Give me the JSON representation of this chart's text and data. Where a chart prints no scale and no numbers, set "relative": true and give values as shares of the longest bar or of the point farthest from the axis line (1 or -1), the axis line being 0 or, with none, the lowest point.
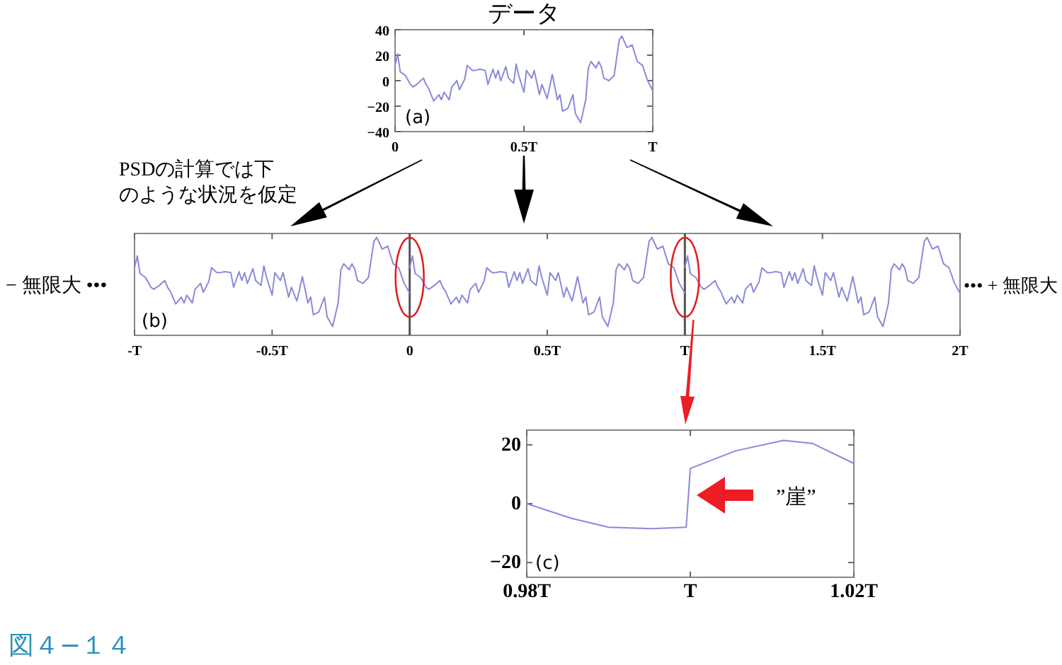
{
  "chart_data": [
    {
      "type": "line",
      "title": "データ",
      "xlim": [
        0,
        1
      ],
      "xticks": [
        0,
        {
          "value": 0.5,
          "label": "0.5T"
        },
        {
          "value": 1,
          "label": "T"
        }
      ],
      "ylim": [
        -40,
        40
      ],
      "yticks": [
        -40,
        -20,
        0,
        20,
        40
      ],
      "annotations": [
        "(a)"
      ],
      "series": [
        {
          "color": "#8a8ad8",
          "x": [
            0,
            0.01,
            0.02,
            0.04,
            0.06,
            0.07,
            0.09,
            0.11,
            0.12,
            0.13,
            0.15,
            0.17,
            0.18,
            0.19,
            0.21,
            0.22,
            0.24,
            0.25,
            0.27,
            0.28,
            0.3,
            0.31,
            0.33,
            0.35,
            0.36,
            0.38,
            0.39,
            0.4,
            0.41,
            0.43,
            0.44,
            0.46,
            0.47,
            0.48,
            0.5,
            0.51,
            0.53,
            0.54,
            0.56,
            0.57,
            0.59,
            0.6,
            0.61,
            0.63,
            0.64,
            0.65,
            0.67,
            0.69,
            0.7,
            0.72,
            0.74,
            0.75,
            0.76,
            0.78,
            0.79,
            0.8,
            0.81,
            0.83,
            0.85,
            0.87,
            0.88,
            0.9,
            0.92,
            0.94,
            0.96,
            0.98,
            1
          ],
          "values": [
            12,
            21,
            7,
            4,
            -3,
            -5,
            -2,
            2,
            -3,
            -6,
            -16,
            -11,
            -15,
            -9,
            -15,
            -5,
            0,
            -7,
            1,
            12,
            8,
            8,
            9,
            8,
            -3,
            9,
            2,
            8,
            0,
            11,
            2,
            -2,
            13,
            4,
            -9,
            8,
            2,
            8,
            -11,
            -3,
            -14,
            -5,
            5,
            -15,
            -11,
            -24,
            -22,
            -11,
            -26,
            -33,
            -15,
            10,
            15,
            10,
            15,
            11,
            2,
            0,
            4,
            32,
            35,
            26,
            28,
            15,
            12,
            0,
            -8
          ]
        }
      ]
    },
    {
      "type": "line",
      "relative": true,
      "xlim": [
        -1,
        2
      ],
      "xticks": [
        {
          "value": -1,
          "label": "-T"
        },
        {
          "value": -0.5,
          "label": "-0.5T"
        },
        0,
        {
          "value": 0.5,
          "label": "0.5T"
        },
        {
          "value": 1,
          "label": "T"
        },
        {
          "value": 1.5,
          "label": "1.5T"
        },
        {
          "value": 2,
          "label": "2T"
        }
      ],
      "ref_lines": [
        {
          "axis": "x",
          "value": 0,
          "color": "#555555"
        },
        {
          "axis": "x",
          "value": 1,
          "color": "#555555"
        }
      ],
      "annotations": [
        "(b)",
        "PSDの計算では下のような状況を仮定",
        "− 無限大 •••",
        "••• + 無限大"
      ],
      "series": [
        {
          "color": "#8a8ad8",
          "x": [
            -1,
            -0.99,
            -0.98,
            -0.96,
            -0.94,
            -0.93,
            -0.91,
            -0.89,
            -0.88,
            -0.87,
            -0.85,
            -0.83,
            -0.82,
            -0.81,
            -0.79,
            -0.78,
            -0.76,
            -0.75,
            -0.73,
            -0.72,
            -0.7,
            -0.69,
            -0.67,
            -0.65,
            -0.64,
            -0.62,
            -0.61,
            -0.6,
            -0.59,
            -0.57,
            -0.56,
            -0.54,
            -0.53,
            -0.52,
            -0.5,
            -0.49,
            -0.47,
            -0.46,
            -0.44,
            -0.43,
            -0.41,
            -0.4,
            -0.39,
            -0.37,
            -0.36,
            -0.35,
            -0.33,
            -0.31,
            -0.3,
            -0.28,
            -0.26,
            -0.25,
            -0.24,
            -0.22,
            -0.21,
            -0.2,
            -0.19,
            -0.17,
            -0.15,
            -0.13,
            -0.12,
            -0.1,
            -0.08,
            -0.06,
            -0.04,
            -0.02,
            0
          ],
          "values": [
            0.69,
            0.81,
            0.63,
            0.59,
            0.49,
            0.47,
            0.51,
            0.56,
            0.49,
            0.45,
            0.32,
            0.39,
            0.33,
            0.41,
            0.33,
            0.47,
            0.53,
            0.44,
            0.55,
            0.69,
            0.64,
            0.64,
            0.65,
            0.64,
            0.49,
            0.65,
            0.56,
            0.64,
            0.53,
            0.68,
            0.56,
            0.51,
            0.71,
            0.59,
            0.41,
            0.64,
            0.56,
            0.64,
            0.39,
            0.49,
            0.35,
            0.47,
            0.6,
            0.33,
            0.39,
            0.21,
            0.24,
            0.39,
            0.19,
            0.09,
            0.33,
            0.67,
            0.73,
            0.67,
            0.73,
            0.68,
            0.56,
            0.53,
            0.59,
            0.96,
            1,
            0.88,
            0.91,
            0.73,
            0.69,
            0.53,
            0.43
          ]
        },
        {
          "color": "#8a8ad8",
          "x": [
            0,
            0.01,
            0.02,
            0.04,
            0.06,
            0.07,
            0.09,
            0.11,
            0.12,
            0.13,
            0.15,
            0.17,
            0.18,
            0.19,
            0.21,
            0.22,
            0.24,
            0.25,
            0.27,
            0.28,
            0.3,
            0.31,
            0.33,
            0.35,
            0.36,
            0.38,
            0.39,
            0.4,
            0.41,
            0.43,
            0.44,
            0.46,
            0.47,
            0.48,
            0.5,
            0.51,
            0.53,
            0.54,
            0.56,
            0.57,
            0.59,
            0.6,
            0.61,
            0.63,
            0.64,
            0.65,
            0.67,
            0.69,
            0.7,
            0.72,
            0.74,
            0.75,
            0.76,
            0.78,
            0.79,
            0.8,
            0.81,
            0.83,
            0.85,
            0.87,
            0.88,
            0.9,
            0.92,
            0.94,
            0.96,
            0.98,
            1
          ],
          "values": [
            0.69,
            0.81,
            0.63,
            0.59,
            0.49,
            0.47,
            0.51,
            0.56,
            0.49,
            0.45,
            0.32,
            0.39,
            0.33,
            0.41,
            0.33,
            0.47,
            0.53,
            0.44,
            0.55,
            0.69,
            0.64,
            0.64,
            0.65,
            0.64,
            0.49,
            0.65,
            0.56,
            0.64,
            0.53,
            0.68,
            0.56,
            0.51,
            0.71,
            0.59,
            0.41,
            0.64,
            0.56,
            0.64,
            0.39,
            0.49,
            0.35,
            0.47,
            0.6,
            0.33,
            0.39,
            0.21,
            0.24,
            0.39,
            0.19,
            0.09,
            0.33,
            0.67,
            0.73,
            0.67,
            0.73,
            0.68,
            0.56,
            0.53,
            0.59,
            0.96,
            1,
            0.88,
            0.91,
            0.73,
            0.69,
            0.53,
            0.43
          ]
        },
        {
          "color": "#8a8ad8",
          "x": [
            1,
            1.01,
            1.02,
            1.04,
            1.06,
            1.07,
            1.09,
            1.11,
            1.12,
            1.13,
            1.15,
            1.17,
            1.18,
            1.19,
            1.21,
            1.22,
            1.24,
            1.25,
            1.27,
            1.28,
            1.3,
            1.31,
            1.33,
            1.35,
            1.36,
            1.38,
            1.39,
            1.4,
            1.41,
            1.43,
            1.44,
            1.46,
            1.47,
            1.48,
            1.5,
            1.51,
            1.53,
            1.54,
            1.56,
            1.57,
            1.59,
            1.6,
            1.61,
            1.63,
            1.64,
            1.65,
            1.67,
            1.69,
            1.7,
            1.72,
            1.74,
            1.75,
            1.76,
            1.78,
            1.79,
            1.8,
            1.81,
            1.83,
            1.85,
            1.87,
            1.88,
            1.9,
            1.92,
            1.94,
            1.96,
            1.98,
            2
          ],
          "values": [
            0.69,
            0.81,
            0.63,
            0.59,
            0.49,
            0.47,
            0.51,
            0.56,
            0.49,
            0.45,
            0.32,
            0.39,
            0.33,
            0.41,
            0.33,
            0.47,
            0.53,
            0.44,
            0.55,
            0.69,
            0.64,
            0.64,
            0.65,
            0.64,
            0.49,
            0.65,
            0.56,
            0.64,
            0.53,
            0.68,
            0.56,
            0.51,
            0.71,
            0.59,
            0.41,
            0.64,
            0.56,
            0.64,
            0.39,
            0.49,
            0.35,
            0.47,
            0.6,
            0.33,
            0.39,
            0.21,
            0.24,
            0.39,
            0.19,
            0.09,
            0.33,
            0.67,
            0.73,
            0.67,
            0.73,
            0.68,
            0.56,
            0.53,
            0.59,
            0.96,
            1,
            0.88,
            0.91,
            0.73,
            0.69,
            0.53,
            0.43
          ]
        }
      ]
    },
    {
      "type": "line",
      "xlim": [
        0.98,
        1.02
      ],
      "xticks": [
        {
          "value": 0.98,
          "label": "0.98T"
        },
        {
          "value": 1,
          "label": "T"
        },
        {
          "value": 1.02,
          "label": "1.02T"
        }
      ],
      "ylim": [
        -25,
        25
      ],
      "yticks": [
        -20,
        0,
        20
      ],
      "annotations": [
        "(c)",
        "”崖”",
        "図４−１４"
      ],
      "series": [
        {
          "color": "#8a8ad8",
          "x": [
            0.98,
            0.9855,
            0.99,
            0.9953,
            0.9995,
            1,
            1.0056,
            1.0114,
            1.0149,
            1.02
          ],
          "values": [
            0,
            -5,
            -8,
            -8.5,
            -8,
            12,
            18,
            21.5,
            20.5,
            13.7
          ]
        }
      ]
    }
  ]
}
